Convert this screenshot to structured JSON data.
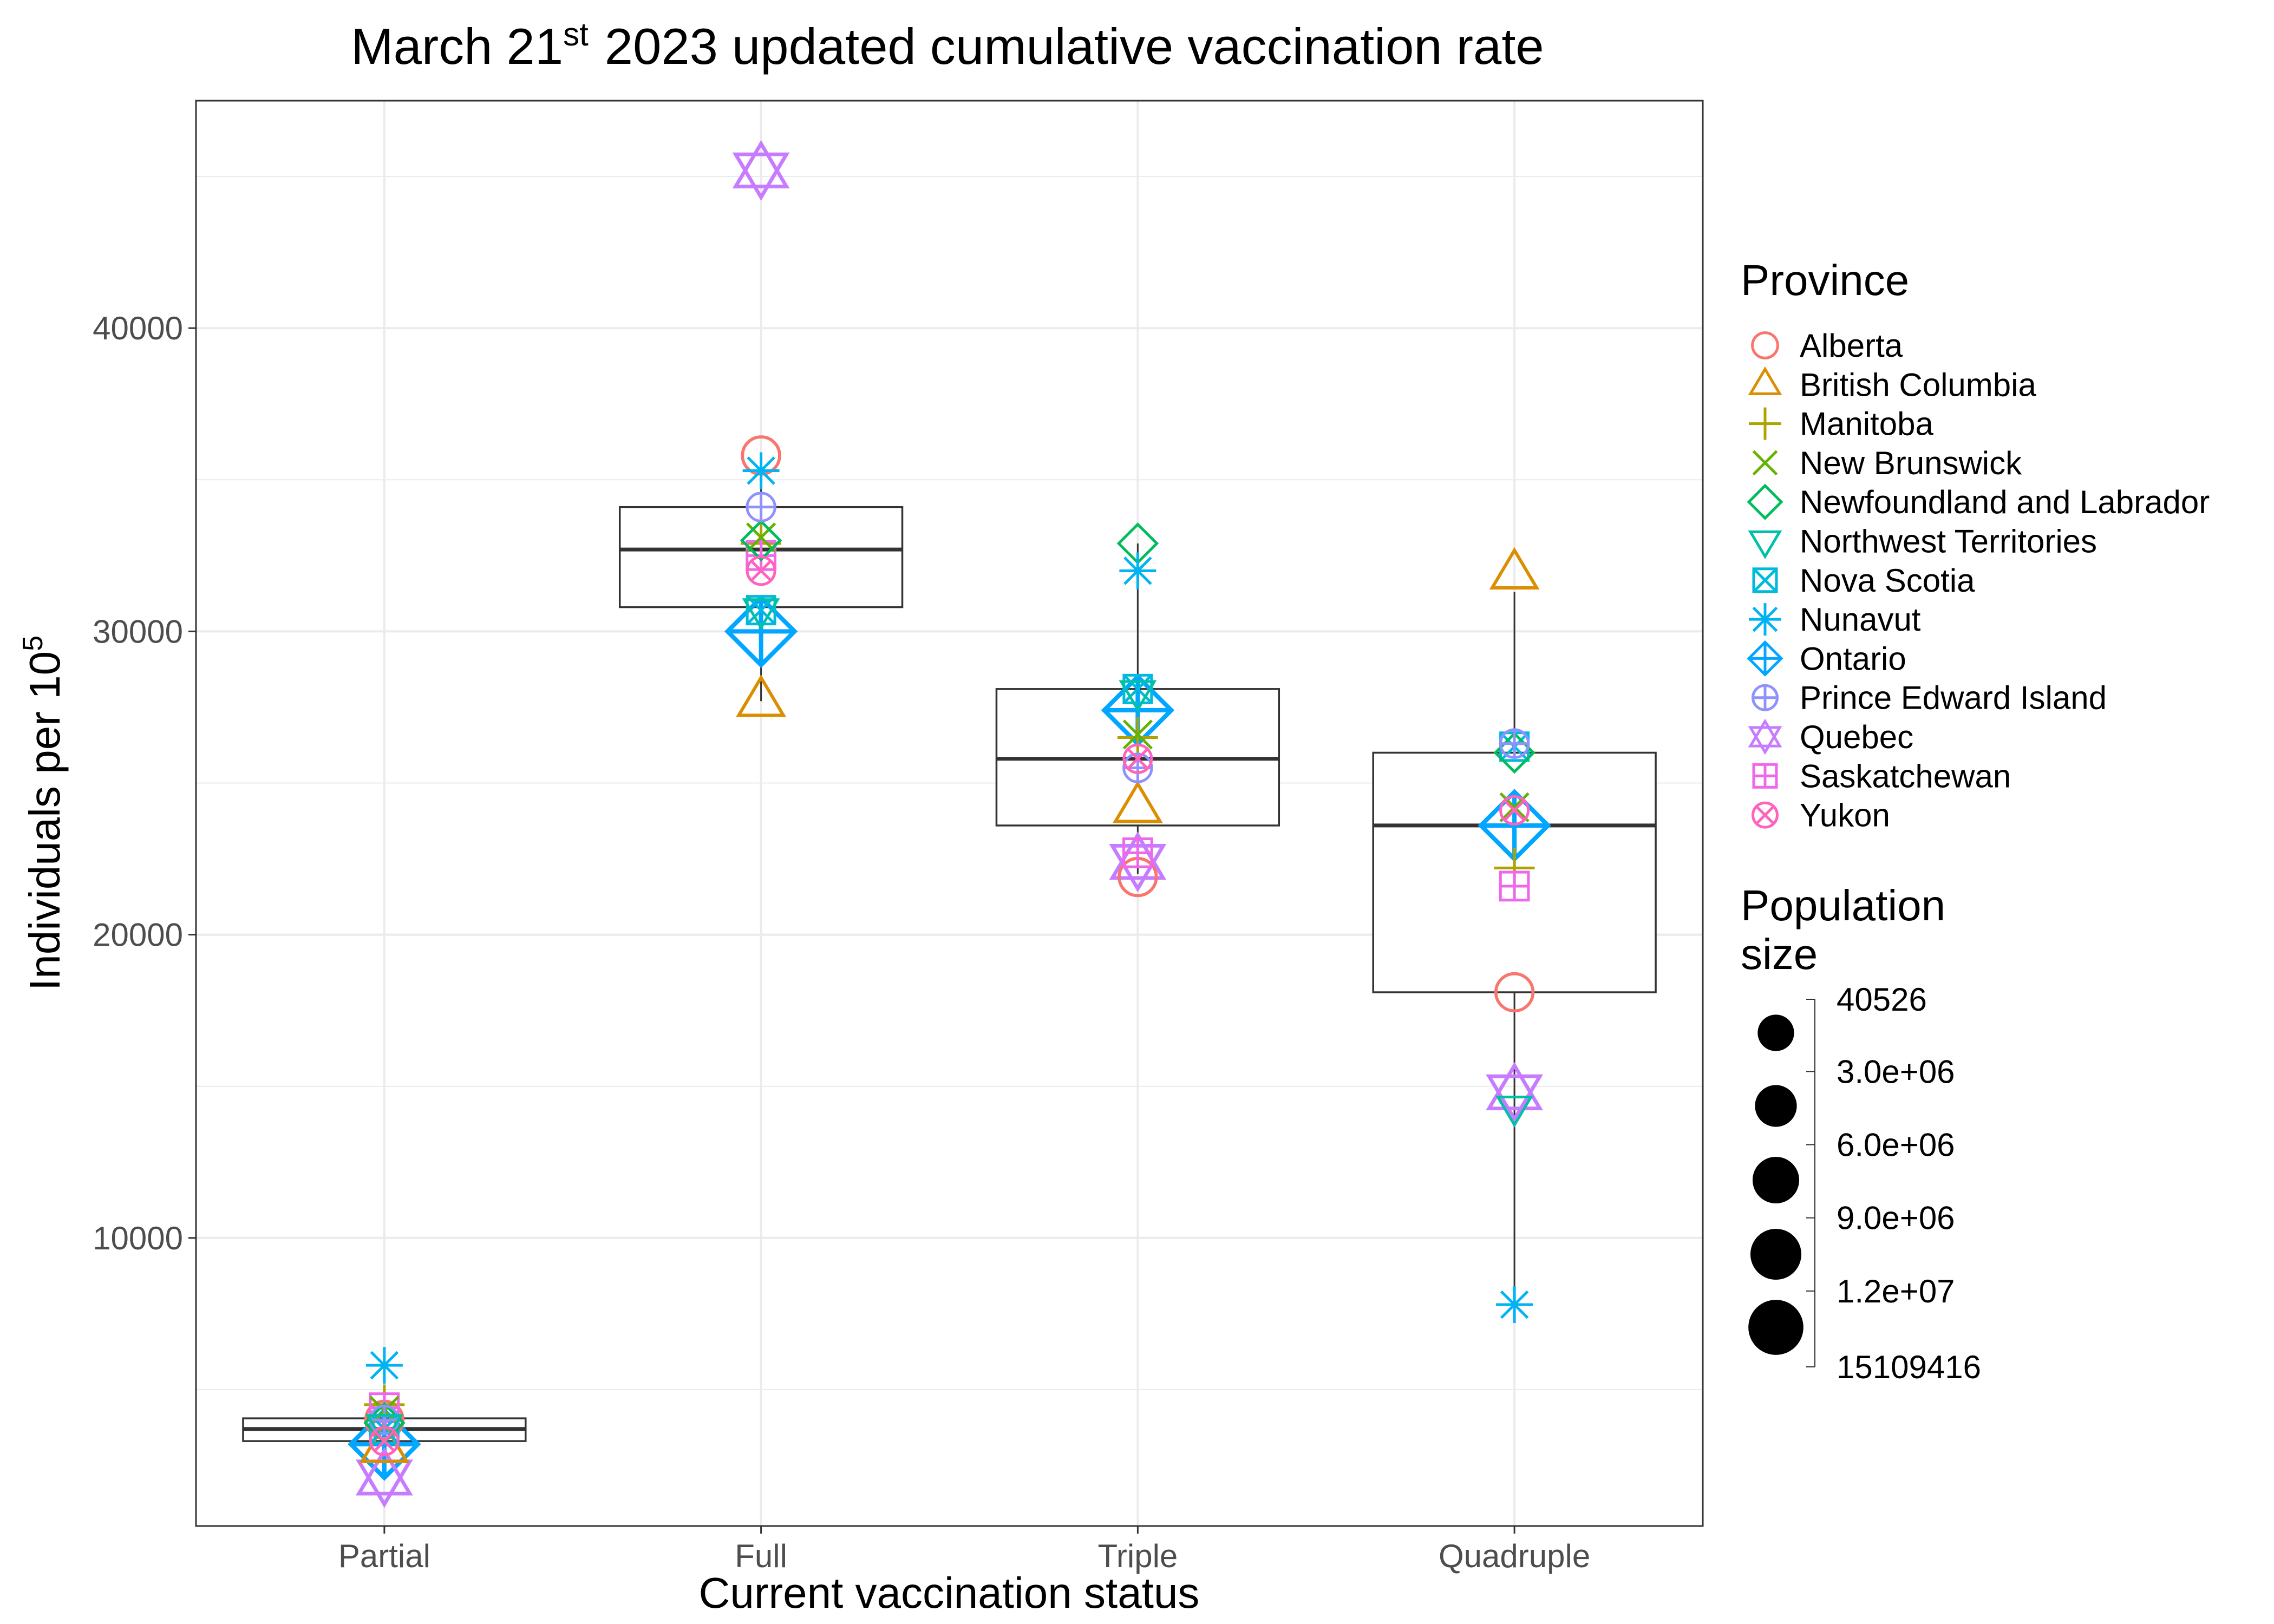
{
  "chart_data": {
    "type": "box",
    "title": {
      "prefix": "March 21",
      "superscript": "st",
      "suffix": "2023 updated cumulative vaccination rate"
    },
    "xlabel": "Current vaccination status",
    "ylabel": {
      "main": "Individuals per 10",
      "superscript": "5"
    },
    "categories": [
      "Partial",
      "Full",
      "Triple",
      "Quadruple"
    ],
    "ylim": [
      500,
      47500
    ],
    "yticks": [
      10000,
      20000,
      30000,
      40000
    ],
    "grid": true,
    "boxes": [
      {
        "category": "Partial",
        "q1": 3300,
        "median": 3700,
        "q3": 4050,
        "whisker_low": 3100,
        "whisker_high": 4200
      },
      {
        "category": "Full",
        "q1": 30800,
        "median": 32700,
        "q3": 34100,
        "whisker_low": 27700,
        "whisker_high": 35300
      },
      {
        "category": "Triple",
        "q1": 23600,
        "median": 25800,
        "q3": 28100,
        "whisker_low": 22000,
        "whisker_high": 32900
      },
      {
        "category": "Quadruple",
        "q1": 18100,
        "median": 23600,
        "q3": 26000,
        "whisker_low": 7800,
        "whisker_high": 31300
      }
    ],
    "series": [
      {
        "name": "Alberta",
        "color": "#F8766D",
        "shape": "circle",
        "population": 4400000,
        "values": [
          4000,
          35800,
          21900,
          18100
        ]
      },
      {
        "name": "British Columbia",
        "color": "#DB8E00",
        "shape": "triangle-up",
        "population": 5300000,
        "values": [
          3100,
          27700,
          24200,
          31900
        ]
      },
      {
        "name": "Manitoba",
        "color": "#AEA200",
        "shape": "plus",
        "population": 1400000,
        "values": [
          4500,
          32900,
          26500,
          22200
        ]
      },
      {
        "name": "New Brunswick",
        "color": "#64B200",
        "shape": "cross",
        "population": 800000,
        "values": [
          4300,
          33100,
          26600,
          24200
        ]
      },
      {
        "name": "Newfoundland and Labrador",
        "color": "#00BD5C",
        "shape": "diamond",
        "population": 520000,
        "values": [
          3900,
          33000,
          32900,
          26000
        ]
      },
      {
        "name": "Northwest Territories",
        "color": "#00C1A7",
        "shape": "triangle-down",
        "population": 45000,
        "values": [
          3800,
          30700,
          28000,
          14300
        ]
      },
      {
        "name": "Nova Scotia",
        "color": "#00BADE",
        "shape": "square-cross",
        "population": 1000000,
        "values": [
          3700,
          30700,
          28100,
          26200
        ]
      },
      {
        "name": "Nunavut",
        "color": "#00B3F3",
        "shape": "asterisk",
        "population": 40526,
        "values": [
          5800,
          35300,
          32000,
          7800
        ]
      },
      {
        "name": "Ontario",
        "color": "#00A6FF",
        "shape": "diamond-plus",
        "population": 15109416,
        "values": [
          3200,
          30000,
          27400,
          23600
        ]
      },
      {
        "name": "Prince Edward Island",
        "color": "#8F91FF",
        "shape": "circle-plus",
        "population": 170000,
        "values": [
          4000,
          34100,
          25500,
          26300
        ]
      },
      {
        "name": "Quebec",
        "color": "#C77CFF",
        "shape": "star-of-david",
        "population": 8800000,
        "values": [
          2100,
          45200,
          22400,
          14800
        ]
      },
      {
        "name": "Saskatchewan",
        "color": "#EF67EB",
        "shape": "square-plus",
        "population": 1200000,
        "values": [
          4400,
          32500,
          22700,
          21600
        ]
      },
      {
        "name": "Yukon",
        "color": "#FF62BC",
        "shape": "circle-cross",
        "population": 44000,
        "values": [
          3300,
          32000,
          25800,
          24100
        ]
      }
    ],
    "legend": {
      "shape_title": "Province",
      "size_title": [
        "Population",
        "size"
      ],
      "size_labels": [
        "40526",
        "3.0e+06",
        "6.0e+06",
        "9.0e+06",
        "1.2e+07",
        "15109416"
      ],
      "size_values": [
        40526,
        3000000,
        6000000,
        9000000,
        12000000,
        15109416
      ],
      "placement": "right"
    }
  }
}
